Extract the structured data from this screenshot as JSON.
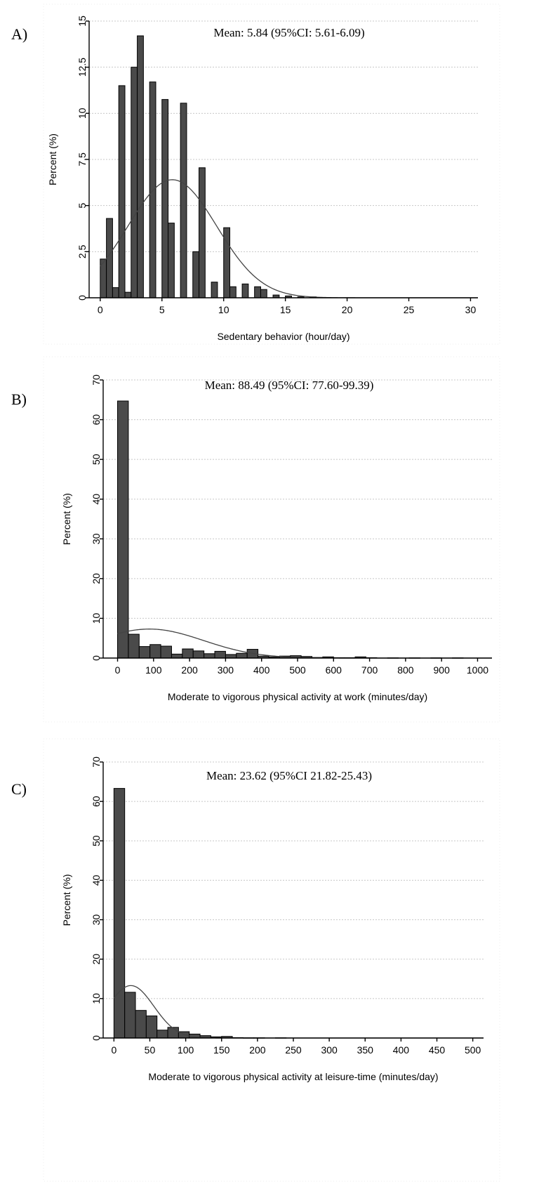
{
  "figure": {
    "panels": [
      "A)",
      "B)",
      "C)"
    ]
  },
  "chart_data": [
    {
      "type": "bar",
      "panel_label": "A)",
      "annotation": "Mean:  5.84 (95%CI: 5.61-6.09)",
      "xlabel": "Sedentary behavior (hour/day)",
      "ylabel": "Percent (%)",
      "xlim": [
        -0.9,
        30.6
      ],
      "ylim": [
        0,
        15
      ],
      "xticks": [
        0,
        5,
        10,
        15,
        20,
        25,
        30
      ],
      "yticks": [
        0,
        2.5,
        5,
        7.5,
        10,
        12.5,
        15
      ],
      "ytick_labels": [
        "0",
        "2.5",
        "5",
        "7.5",
        "10",
        "12.5",
        "15"
      ],
      "grid": true,
      "bin_width": 0.5,
      "bins": [
        {
          "x": 0.25,
          "y": 2.1
        },
        {
          "x": 0.75,
          "y": 4.3
        },
        {
          "x": 1.25,
          "y": 0.55
        },
        {
          "x": 1.75,
          "y": 11.5
        },
        {
          "x": 2.25,
          "y": 0.3
        },
        {
          "x": 2.75,
          "y": 12.5
        },
        {
          "x": 3.25,
          "y": 14.2
        },
        {
          "x": 4.25,
          "y": 11.7
        },
        {
          "x": 5.25,
          "y": 10.75
        },
        {
          "x": 5.75,
          "y": 4.05
        },
        {
          "x": 6.75,
          "y": 10.55
        },
        {
          "x": 7.75,
          "y": 2.5
        },
        {
          "x": 8.25,
          "y": 7.05
        },
        {
          "x": 9.25,
          "y": 0.85
        },
        {
          "x": 10.25,
          "y": 3.8
        },
        {
          "x": 10.75,
          "y": 0.6
        },
        {
          "x": 11.75,
          "y": 0.75
        },
        {
          "x": 12.75,
          "y": 0.6
        },
        {
          "x": 13.25,
          "y": 0.45
        },
        {
          "x": 14.25,
          "y": 0.15
        },
        {
          "x": 15.25,
          "y": 0.1
        },
        {
          "x": 16.25,
          "y": 0.05
        },
        {
          "x": 17.25,
          "y": 0.05
        }
      ],
      "normal_curve": {
        "mean": 5.84,
        "sd": 3.6,
        "scale": 6.4
      }
    },
    {
      "type": "bar",
      "panel_label": "B)",
      "annotation": "Mean:  88.49 (95%CI: 77.60-99.39)",
      "xlabel": "Moderate to vigorous physical activity at work (minutes/day)",
      "ylabel": "Percent (%)",
      "xlim": [
        -40,
        1040
      ],
      "ylim": [
        0,
        70
      ],
      "xticks": [
        0,
        100,
        200,
        300,
        400,
        500,
        600,
        700,
        800,
        900,
        1000
      ],
      "yticks": [
        0,
        10,
        20,
        30,
        40,
        50,
        60,
        70
      ],
      "ytick_labels": [
        "0",
        "10",
        "20",
        "30",
        "40",
        "50",
        "60",
        "70"
      ],
      "grid": true,
      "bin_width": 30,
      "bins": [
        {
          "x": 15,
          "y": 64.7
        },
        {
          "x": 45,
          "y": 6.0
        },
        {
          "x": 75,
          "y": 2.9
        },
        {
          "x": 105,
          "y": 3.4
        },
        {
          "x": 135,
          "y": 3.0
        },
        {
          "x": 165,
          "y": 1.0
        },
        {
          "x": 195,
          "y": 2.3
        },
        {
          "x": 225,
          "y": 1.8
        },
        {
          "x": 255,
          "y": 1.1
        },
        {
          "x": 285,
          "y": 1.7
        },
        {
          "x": 315,
          "y": 0.9
        },
        {
          "x": 345,
          "y": 1.2
        },
        {
          "x": 375,
          "y": 2.2
        },
        {
          "x": 405,
          "y": 0.5
        },
        {
          "x": 435,
          "y": 0.3
        },
        {
          "x": 465,
          "y": 0.5
        },
        {
          "x": 495,
          "y": 0.6
        },
        {
          "x": 525,
          "y": 0.4
        },
        {
          "x": 555,
          "y": 0.15
        },
        {
          "x": 585,
          "y": 0.3
        },
        {
          "x": 615,
          "y": 0.1
        },
        {
          "x": 645,
          "y": 0.1
        },
        {
          "x": 675,
          "y": 0.3
        },
        {
          "x": 705,
          "y": 0.1
        },
        {
          "x": 765,
          "y": 0.05
        },
        {
          "x": 825,
          "y": 0.05
        },
        {
          "x": 885,
          "y": 0.05
        },
        {
          "x": 945,
          "y": 0.05
        }
      ],
      "normal_curve": {
        "mean": 88.49,
        "sd": 150,
        "scale": 7.3
      }
    },
    {
      "type": "bar",
      "panel_label": "C)",
      "annotation": "Mean:   23.62 (95%CI 21.82-25.43)",
      "xlabel": "Moderate to vigorous physical activity at leisure-time (minutes/day)",
      "ylabel": "Percent (%)",
      "xlim": [
        -15,
        515
      ],
      "ylim": [
        0,
        70
      ],
      "xticks": [
        0,
        50,
        100,
        150,
        200,
        250,
        300,
        350,
        400,
        450,
        500
      ],
      "yticks": [
        0,
        10,
        20,
        30,
        40,
        50,
        60,
        70
      ],
      "ytick_labels": [
        "0",
        "10",
        "20",
        "30",
        "40",
        "50",
        "60",
        "70"
      ],
      "grid": true,
      "bin_width": 15,
      "bins": [
        {
          "x": 7.5,
          "y": 63.3
        },
        {
          "x": 22.5,
          "y": 11.6
        },
        {
          "x": 37.5,
          "y": 7.0
        },
        {
          "x": 52.5,
          "y": 5.6
        },
        {
          "x": 67.5,
          "y": 2.0
        },
        {
          "x": 82.5,
          "y": 2.7
        },
        {
          "x": 97.5,
          "y": 1.6
        },
        {
          "x": 112.5,
          "y": 1.0
        },
        {
          "x": 127.5,
          "y": 0.6
        },
        {
          "x": 142.5,
          "y": 0.3
        },
        {
          "x": 157.5,
          "y": 0.4
        },
        {
          "x": 172.5,
          "y": 0.1
        },
        {
          "x": 187.5,
          "y": 0.05
        },
        {
          "x": 202.5,
          "y": 0.05
        },
        {
          "x": 232.5,
          "y": 0.05
        }
      ],
      "normal_curve": {
        "mean": 23.62,
        "sd": 32,
        "scale": 13.3
      }
    }
  ]
}
